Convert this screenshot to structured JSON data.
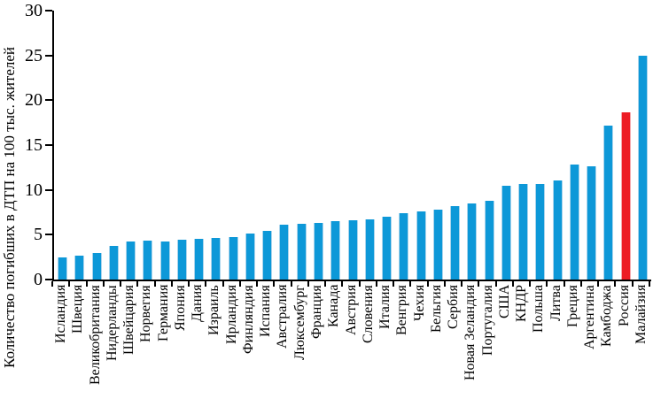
{
  "chart_data": {
    "type": "bar",
    "title": "",
    "xlabel": "",
    "ylabel": "Количество погибших в ДТП на 100 тыс. жителей",
    "ylim": [
      0,
      30
    ],
    "yticks": [
      0,
      5,
      10,
      15,
      20,
      25,
      30
    ],
    "grid": false,
    "legend_position": "none",
    "bar_color": "#0d98d8",
    "highlight_color": "#ed1c24",
    "highlight_category": "Россия",
    "categories": [
      "Исландия",
      "Швеция",
      "Великобритания",
      "Нидерланды",
      "Швейцария",
      "Норвегия",
      "Германия",
      "Япония",
      "Дания",
      "Израиль",
      "Ирландия",
      "Финляндия",
      "Испания",
      "Австралия",
      "Люксембург",
      "Франция",
      "Канада",
      "Австрия",
      "Словения",
      "Италия",
      "Венгрия",
      "Чехия",
      "Бельгия",
      "Сербия",
      "Новая Зеландия",
      "Португалия",
      "США",
      "КНДР",
      "Польша",
      "Литва",
      "Греция",
      "Аргентина",
      "Камбоджа",
      "Россия",
      "Малайзия"
    ],
    "values": [
      2.5,
      2.7,
      3.0,
      3.8,
      4.2,
      4.3,
      4.2,
      4.4,
      4.5,
      4.6,
      4.7,
      5.1,
      5.4,
      6.1,
      6.2,
      6.3,
      6.5,
      6.6,
      6.7,
      7.0,
      7.4,
      7.6,
      7.8,
      8.2,
      8.5,
      8.8,
      10.5,
      10.7,
      10.7,
      11.1,
      12.8,
      12.6,
      17.2,
      18.7,
      25.0
    ]
  }
}
